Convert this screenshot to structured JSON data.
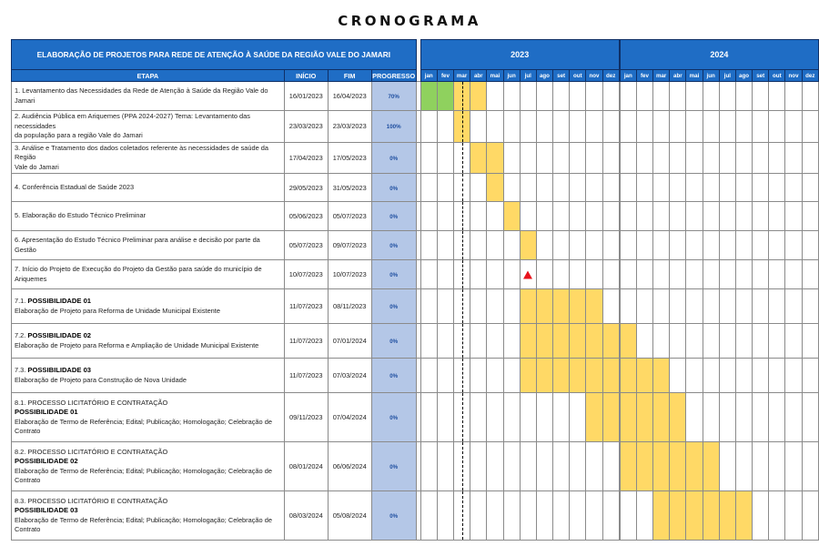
{
  "title": "CRONOGRAMA",
  "header": {
    "project_title": "ELABORAÇÃO DE PROJETOS PARA REDE DE ATENÇÃO À SAÚDE DA REGIÃO VALE DO JAMARI",
    "years": [
      "2023",
      "2024"
    ],
    "col_etapa": "ETAPA",
    "col_inicio": "INÍCIO",
    "col_fim": "FIM",
    "col_progresso": "PROGRESSO",
    "months": [
      "jan",
      "fev",
      "mar",
      "abr",
      "mai",
      "jun",
      "jul",
      "ago",
      "set",
      "out",
      "nov",
      "dez"
    ]
  },
  "colors": {
    "bar": "#ffd966",
    "done": "#8fd15e",
    "header": "#1f6dc5",
    "progress_cell": "#b4c7e7",
    "milestone": "#e8121c"
  },
  "tasks": [
    {
      "lines": [
        "1. Levantamento das Necessidades da Rede de Atenção à Saúde da Região Vale do Jamari"
      ],
      "start": "16/01/2023",
      "end": "16/04/2023",
      "progress": "70%",
      "cells": {
        "0": "g",
        "1": "g",
        "2": "fd",
        "3": "f"
      }
    },
    {
      "lines": [
        "2. Audiência Pública em Ariquemes (PPA 2024-2027) Tema: Levantamento das necessidades",
        "da população para a região Vale do Jamari"
      ],
      "start": "23/03/2023",
      "end": "23/03/2023",
      "progress": "100%",
      "cells": {
        "2": "fd"
      }
    },
    {
      "lines": [
        "3. Análise e Tratamento dos dados coletados referente às necessidades de saúde da Região",
        "Vale do Jamari"
      ],
      "start": "17/04/2023",
      "end": "17/05/2023",
      "progress": "0%",
      "cells": {
        "2": "d",
        "3": "f",
        "4": "f"
      }
    },
    {
      "lines": [
        "4. Conferência Estadual de Saúde 2023"
      ],
      "start": "29/05/2023",
      "end": "31/05/2023",
      "progress": "0%",
      "cells": {
        "2": "d",
        "4": "f"
      }
    },
    {
      "lines": [
        "5. Elaboração do Estudo Técnico Preliminar"
      ],
      "start": "05/06/2023",
      "end": "05/07/2023",
      "progress": "0%",
      "cells": {
        "2": "d",
        "5": "f"
      }
    },
    {
      "lines": [
        "6. Apresentação do Estudo Técnico Preliminar para análise e decisão por parte da Gestão"
      ],
      "start": "05/07/2023",
      "end": "09/07/2023",
      "progress": "0%",
      "cells": {
        "2": "d",
        "6": "f"
      }
    },
    {
      "lines": [
        "7. Início do Projeto de Execução do Projeto da Gestão para saúde do município de",
        "Ariquemes"
      ],
      "start": "10/07/2023",
      "end": "10/07/2023",
      "progress": "0%",
      "cells": {
        "2": "d",
        "6": "t"
      }
    },
    {
      "prefix": "7.1.",
      "poss": "POSSIBILIDADE 01",
      "lines": [
        "Elaboração de Projeto para Reforma de Unidade Municipal Existente"
      ],
      "start": "11/07/2023",
      "end": "08/11/2023",
      "progress": "0%",
      "cells": {
        "2": "d",
        "6": "f",
        "7": "f",
        "8": "f",
        "9": "f",
        "10": "f"
      }
    },
    {
      "prefix": "7.2.",
      "poss": "POSSIBILIDADE 02",
      "lines": [
        "Elaboração de Projeto para Reforma e Ampliação de Unidade Municipal Existente"
      ],
      "start": "11/07/2023",
      "end": "07/01/2024",
      "progress": "0%",
      "cells": {
        "2": "d",
        "6": "f",
        "7": "f",
        "8": "f",
        "9": "f",
        "10": "f",
        "11": "f",
        "12": "f"
      }
    },
    {
      "prefix": "7.3.",
      "poss": "POSSIBILIDADE 03",
      "lines": [
        "Elaboração de Projeto para Construção de Nova Unidade"
      ],
      "start": "11/07/2023",
      "end": "07/03/2024",
      "progress": "0%",
      "cells": {
        "2": "d",
        "6": "f",
        "7": "f",
        "8": "f",
        "9": "f",
        "10": "f",
        "11": "f",
        "12": "f",
        "13": "f",
        "14": "f"
      }
    },
    {
      "pre": "8.1. PROCESSO LICITATÓRIO E CONTRATAÇÃO",
      "poss": "POSSIBILIDADE 01",
      "lines": [
        "Elaboração de Termo de Referência; Edital; Publicação; Homologação; Celebração de",
        "Contrato"
      ],
      "start": "09/11/2023",
      "end": "07/04/2024",
      "progress": "0%",
      "cells": {
        "2": "d",
        "10": "f",
        "11": "f",
        "12": "f",
        "13": "f",
        "14": "f",
        "15": "f"
      }
    },
    {
      "pre": "8.2. PROCESSO LICITATÓRIO E CONTRATAÇÃO",
      "poss": "POSSIBILIDADE 02",
      "lines": [
        "Elaboração de Termo de Referência; Edital; Publicação; Homologação; Celebração de",
        "Contrato"
      ],
      "start": "08/01/2024",
      "end": "06/06/2024",
      "progress": "0%",
      "cells": {
        "2": "d",
        "12": "f",
        "13": "f",
        "14": "f",
        "15": "f",
        "16": "f",
        "17": "f"
      }
    },
    {
      "pre": "8.3. PROCESSO LICITATÓRIO E CONTRATAÇÃO",
      "poss": "POSSIBILIDADE 03",
      "lines": [
        "Elaboração de Termo de Referência; Edital; Publicação; Homologação; Celebração de",
        "Contrato"
      ],
      "start": "08/03/2024",
      "end": "05/08/2024",
      "progress": "0%",
      "cells": {
        "2": "d",
        "14": "f",
        "15": "f",
        "16": "f",
        "17": "f",
        "18": "f",
        "19": "f"
      }
    }
  ]
}
